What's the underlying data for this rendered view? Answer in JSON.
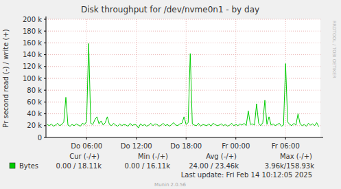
{
  "chart_data": {
    "type": "line",
    "title": "Disk throughput for /dev/nvme0n1 - by day",
    "y_label": "Pr second read (-) / write (+)",
    "x": [
      1.25,
      1.5,
      1.75,
      2,
      2.25,
      2.5,
      2.75,
      3,
      3.25,
      3.5,
      3.75,
      4,
      4.25,
      4.5,
      4.75,
      5,
      5.25,
      5.5,
      5.75,
      6,
      6.25,
      6.5,
      6.75,
      7,
      7.25,
      7.5,
      7.75,
      8,
      8.25,
      8.5,
      8.75,
      9,
      9.25,
      9.5,
      9.75,
      10,
      10.25,
      10.5,
      10.75,
      11,
      11.25,
      11.5,
      11.75,
      12,
      12.25,
      12.5,
      12.75,
      13,
      13.25,
      13.5,
      13.75,
      14,
      14.25,
      14.5,
      14.75,
      15,
      15.25,
      15.5,
      15.75,
      16,
      16.25,
      16.5,
      16.75,
      17,
      17.25,
      17.5,
      17.75,
      18,
      18.25,
      18.5,
      18.75,
      19,
      19.25,
      19.5,
      19.75,
      20,
      20.25,
      20.5,
      20.75,
      21,
      21.25,
      21.5,
      21.75,
      22,
      22.25,
      22.5,
      22.75,
      23,
      23.25,
      23.5,
      23.75,
      24,
      24.25,
      24.5,
      24.75,
      25,
      25.25,
      25.5,
      25.75,
      26,
      26.25,
      26.5,
      26.75,
      27,
      27.25,
      27.5,
      27.75,
      28,
      28.25,
      28.5,
      28.75,
      29,
      29.25,
      29.5,
      29.75,
      30,
      30.25,
      30.5,
      30.75,
      31,
      31.25,
      31.5,
      31.75,
      32,
      32.25,
      32.5,
      32.75,
      33,
      33.25,
      33.5,
      33.75,
      34
    ],
    "series": [
      {
        "name": "Bytes",
        "color": "#00cc00",
        "values": [
          22000,
          20000,
          23000,
          19000,
          21000,
          24000,
          20000,
          22000,
          26000,
          68000,
          21000,
          19000,
          22000,
          20000,
          23000,
          21000,
          19000,
          24000,
          22000,
          27000,
          158930,
          24000,
          22000,
          30000,
          35000,
          23000,
          28000,
          21000,
          25000,
          35000,
          22000,
          20000,
          24000,
          21000,
          19000,
          23000,
          20000,
          22000,
          21000,
          19000,
          24000,
          20000,
          22000,
          21000,
          16110,
          23000,
          20000,
          22000,
          19000,
          21000,
          24000,
          20000,
          23000,
          22000,
          19000,
          21000,
          24000,
          20000,
          22000,
          19000,
          22000,
          25000,
          21000,
          20000,
          23000,
          24000,
          35000,
          22000,
          25000,
          142000,
          23000,
          21000,
          20000,
          24000,
          19000,
          22000,
          21000,
          20000,
          23000,
          19000,
          24000,
          22000,
          20000,
          21000,
          23000,
          20000,
          22000,
          19000,
          21000,
          24000,
          20000,
          22000,
          20000,
          23000,
          21000,
          24000,
          20000,
          45000,
          22000,
          23000,
          21000,
          57000,
          24000,
          20000,
          25000,
          63000,
          22000,
          35000,
          21000,
          23000,
          20000,
          22000,
          24000,
          19000,
          21000,
          125000,
          26000,
          22000,
          20000,
          24000,
          21000,
          40000,
          23000,
          20000,
          22000,
          19000,
          24000,
          21000,
          23000,
          20000,
          25000,
          18110
        ]
      }
    ],
    "xlim": [
      1.1,
      34.2
    ],
    "ylim": [
      0,
      200000
    ],
    "xticks": [
      {
        "value": 6,
        "label": "Do 06:00"
      },
      {
        "value": 12,
        "label": "Do 12:00"
      },
      {
        "value": 18,
        "label": "Do 18:00"
      },
      {
        "value": 24,
        "label": "Fr 00:00"
      },
      {
        "value": 30,
        "label": "Fr 06:00"
      }
    ],
    "yticks": [
      0,
      {
        "value": 20000,
        "label": "20 k"
      },
      {
        "value": 40000,
        "label": "40 k"
      },
      {
        "value": 60000,
        "label": "60 k"
      },
      {
        "value": 80000,
        "label": "80 k"
      },
      {
        "value": 100000,
        "label": "100 k"
      },
      {
        "value": 120000,
        "label": "120 k"
      },
      {
        "value": 140000,
        "label": "140 k"
      },
      {
        "value": 160000,
        "label": "160 k"
      },
      {
        "value": 180000,
        "label": "180 k"
      },
      {
        "value": 200000,
        "label": "200 k"
      }
    ],
    "grid": true,
    "legend": "bottom",
    "stats_headers": [
      "Cur (-/+)",
      "Min (-/+)",
      "Avg (-/+)",
      "Max (-/+)"
    ],
    "stats": [
      "0.00 / 18.11k",
      "0.00 / 16.11k",
      "24.00 / 23.46k",
      "3.96k/158.93k"
    ],
    "last_update": "Last update: Fri Feb 14 10:12:05 2025",
    "footer": "Munin 2.0.56",
    "watermark": "RRDTOOL / TOBI OETIKER"
  }
}
